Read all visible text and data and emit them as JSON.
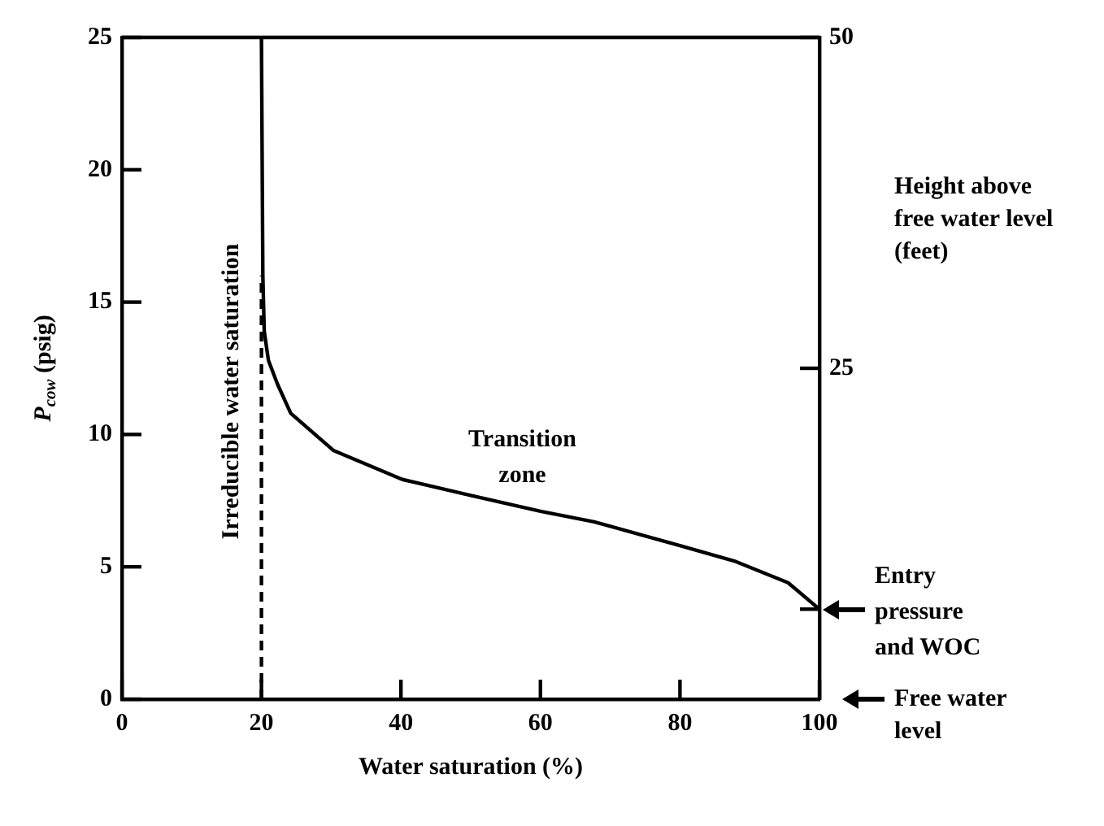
{
  "chart_data": {
    "type": "line",
    "xlabel": "Water saturation (%)",
    "ylabel": "P$_{cow}$ (psig)",
    "y2label": "Height above free water level (feet)",
    "xlim": [
      0,
      100
    ],
    "xticks": [
      0,
      20,
      40,
      60,
      80,
      100
    ],
    "ylim": [
      0,
      25
    ],
    "yticks": [
      0,
      5,
      10,
      15,
      20,
      25
    ],
    "y2lim": [
      0,
      50
    ],
    "y2ticks": [
      {
        "value": 6.8,
        "label": null
      },
      25,
      50
    ],
    "grid": false,
    "legend": false,
    "marker": "none",
    "series": [
      {
        "color": "#000000",
        "line_style": "solid",
        "x": [
          20,
          20.2,
          20.4,
          21,
          22.3,
          24.2,
          30.3,
          40.2,
          50,
          60,
          67.7,
          80,
          88,
          95.5,
          100
        ],
        "values": [
          25,
          16,
          13.9,
          12.8,
          11.9,
          10.8,
          9.4,
          8.3,
          7.7,
          7.1,
          6.7,
          5.8,
          5.2,
          4.4,
          3.4
        ]
      },
      {
        "color": "#000000",
        "line_style": "dashed",
        "x": [
          20,
          20
        ],
        "values": [
          0,
          16
        ]
      }
    ],
    "annotations": [
      "Irreducible water saturation",
      "Transition zone",
      {
        "text": "Entry pressure and WOC",
        "x": 100,
        "y": 3.4
      },
      "Free water level"
    ]
  }
}
